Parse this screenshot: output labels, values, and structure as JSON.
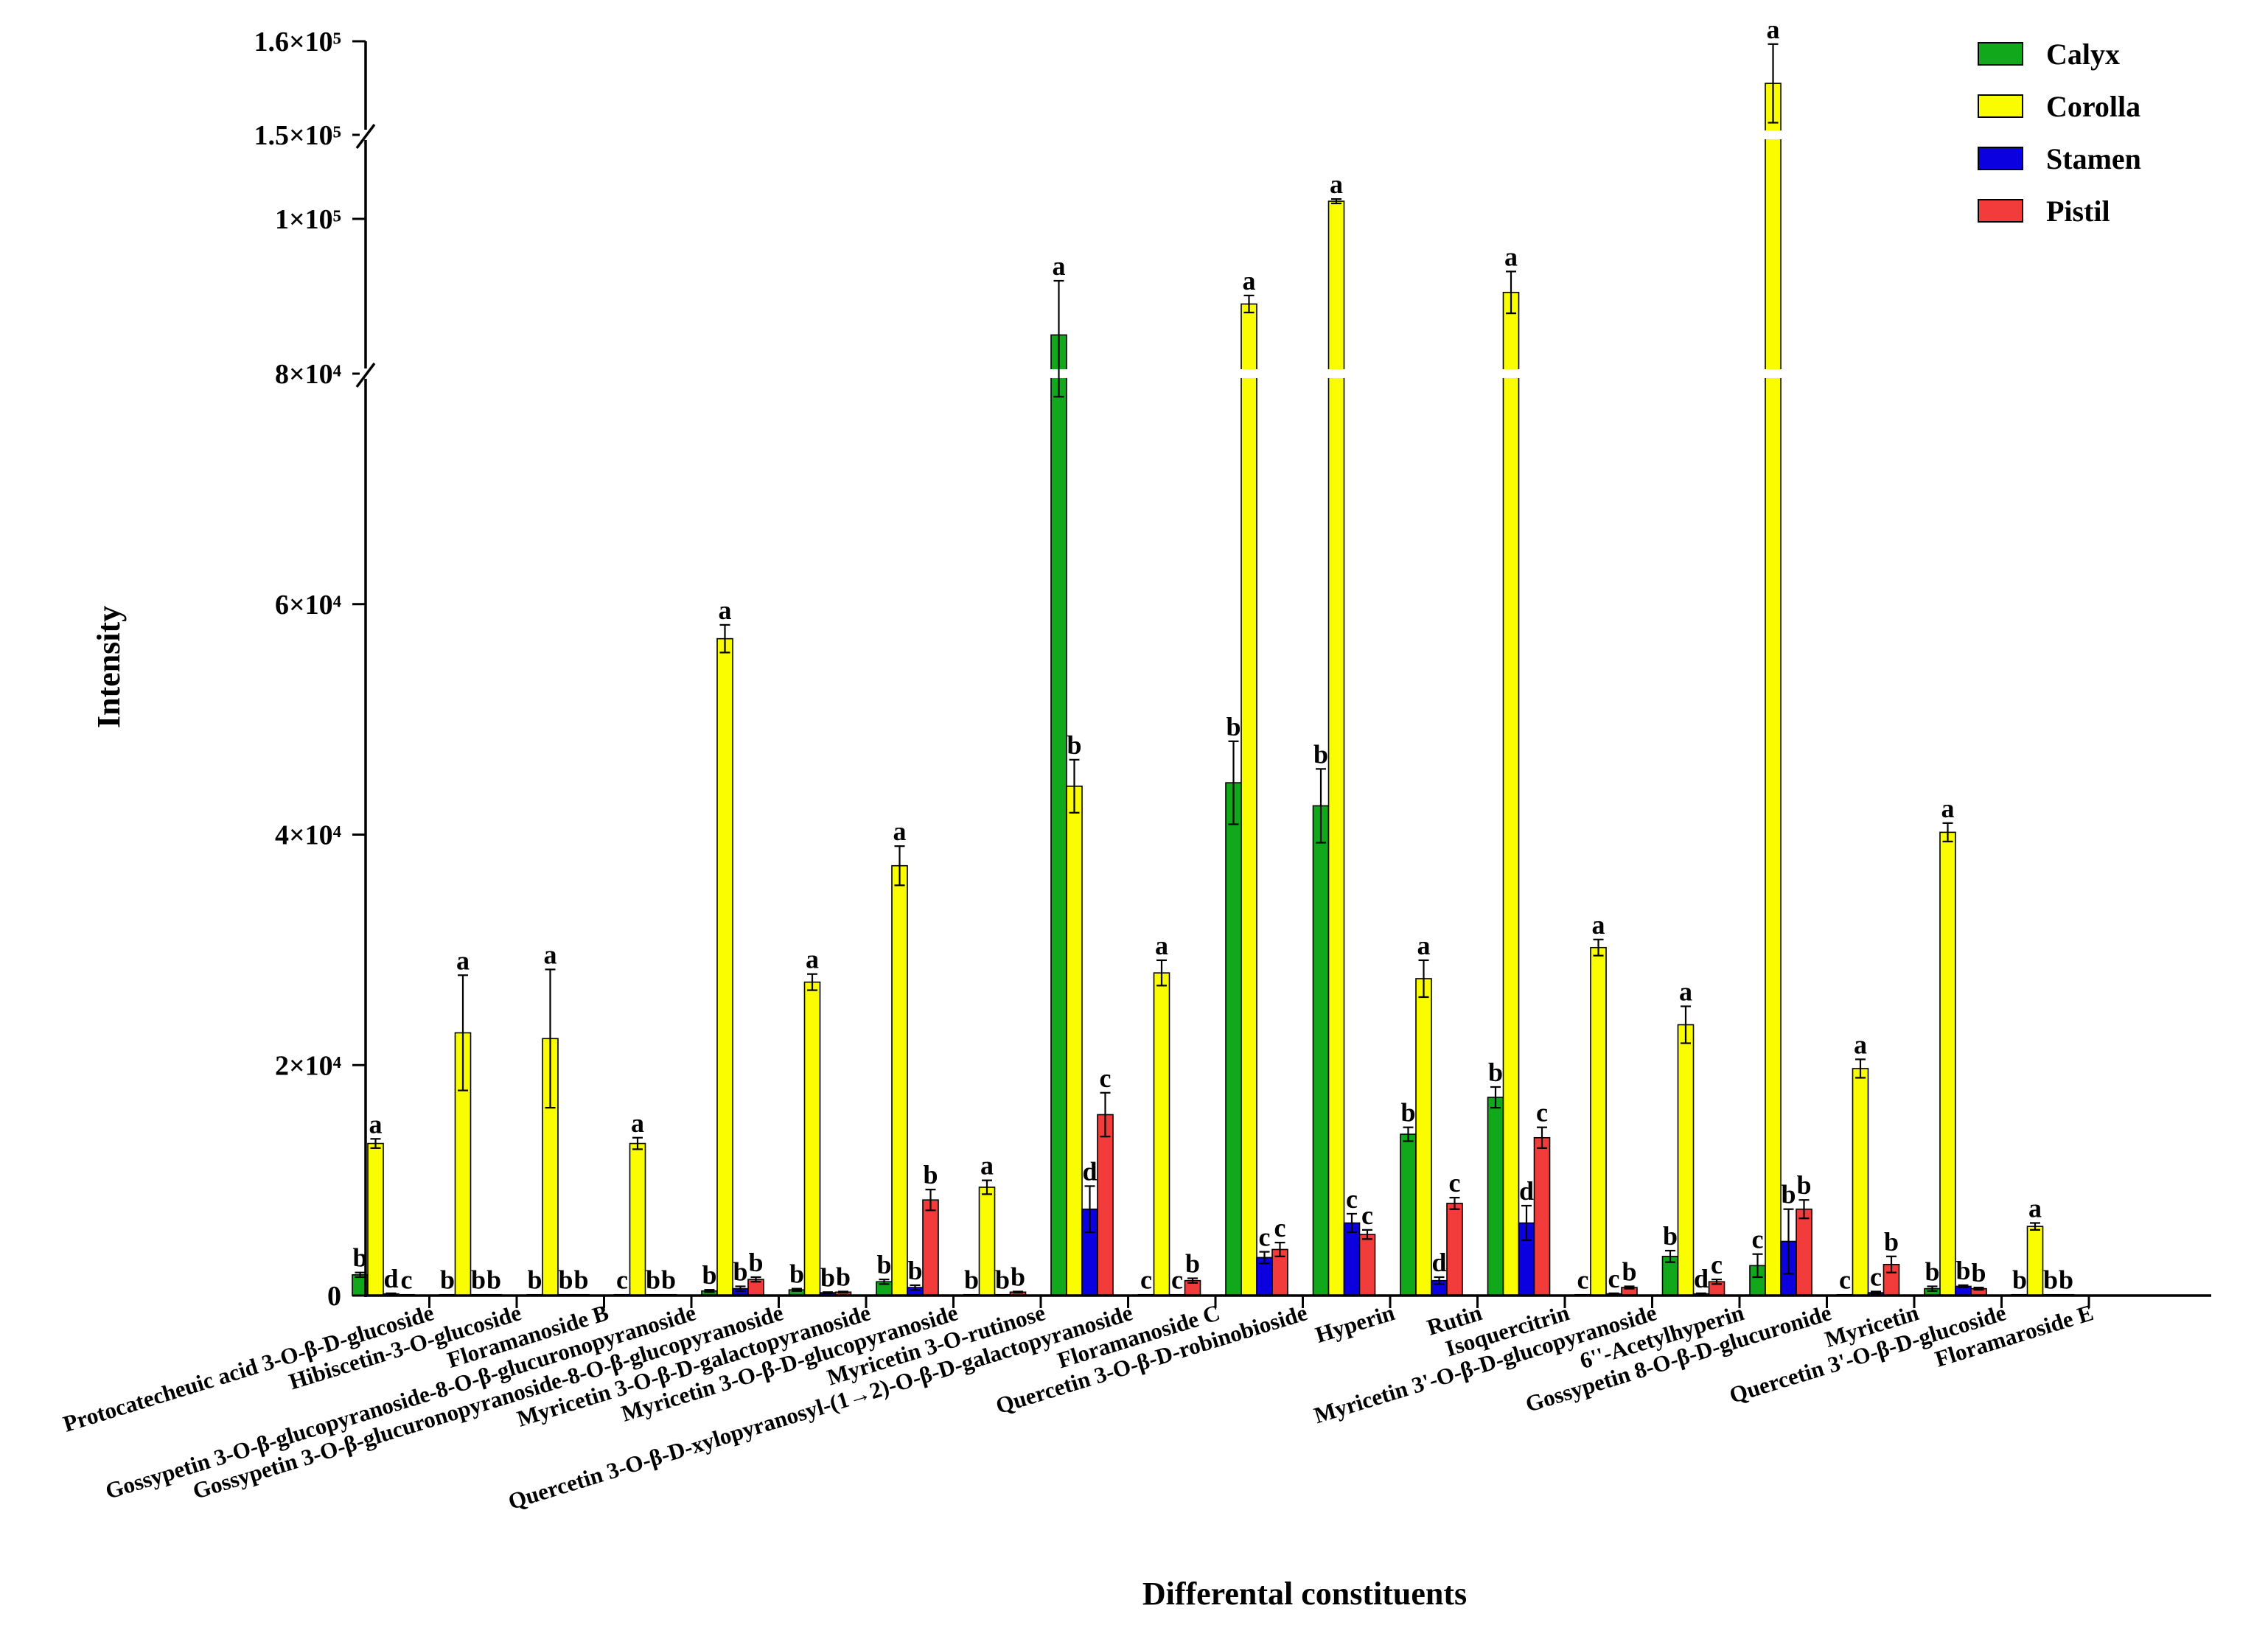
{
  "chart_data": {
    "type": "bar",
    "title": "",
    "xlabel": "Differental constituents",
    "ylabel": "Intensity",
    "ylim": [
      0,
      160000
    ],
    "axis_breaks": [
      [
        80000,
        100000
      ],
      [
        150000,
        160000
      ]
    ],
    "grid": false,
    "legend_position": "top-right",
    "y_ticks": [
      {
        "value": 0,
        "label": "0"
      },
      {
        "value": 20000,
        "label": "2×10⁴"
      },
      {
        "value": 40000,
        "label": "4×10⁴"
      },
      {
        "value": 60000,
        "label": "6×10⁴"
      },
      {
        "value": 80000,
        "label": "8×10⁴"
      },
      {
        "value": 100000,
        "label": "1×10⁵"
      },
      {
        "value": 150000,
        "label": "1.5×10⁵"
      },
      {
        "value": 160000,
        "label": "1.6×10⁵"
      }
    ],
    "categories": [
      "Protocatecheuic acid 3-O-β-D-glucoside",
      "Hibiscetin-3-O-glucoside",
      "Floramanoside B",
      "Gossypetin 3-O-β-glucopyranoside-8-O-β-glucuronopyranoside",
      "Gossypetin 3-O-β-glucuronopyranoside-8-O-β-glucopyranoside",
      "Myricetin 3-O-β-D-galactopyranoside",
      "Myricetin 3-O-β-D-glucopyranoside",
      "Myricetin 3-O-rutinose",
      "Quercetin 3-O-β-D-xylopyranosyl-(1→2)-O-β-D-galactopyranoside",
      "Floramanoside C",
      "Quercetin 3-O-β-D-robinobioside",
      "Hyperin",
      "Rutin",
      "Isoquercitrin",
      "Myricetin 3'-O-β-D-glucopyranoside",
      "6''-Acetylhyperin",
      "Gossypetin 8-O-β-D-glucuronide",
      "Myricetin",
      "Quercetin 3'-O-β-D-glucoside",
      "Floramaroside E"
    ],
    "series": [
      {
        "name": "Calyx",
        "color": "#12a81b",
        "values": [
          1800,
          80,
          80,
          80,
          400,
          500,
          1200,
          80,
          85000,
          80,
          44500,
          42500,
          14000,
          17200,
          80,
          3400,
          2600,
          80,
          600,
          80
        ],
        "errors": [
          200,
          0,
          0,
          0,
          100,
          100,
          200,
          0,
          7000,
          0,
          3600,
          3200,
          600,
          900,
          0,
          500,
          1000,
          0,
          200,
          0
        ],
        "letters": [
          "b",
          "b",
          "b",
          "c",
          "b",
          "b",
          "b",
          "b",
          "a",
          "c",
          "b",
          "b",
          "b",
          "b",
          "c",
          "b",
          "c",
          "c",
          "b",
          "b"
        ]
      },
      {
        "name": "Corolla",
        "color": "#fafc00",
        "values": [
          13200,
          22800,
          22300,
          13200,
          57000,
          27200,
          37300,
          9400,
          44200,
          28000,
          89000,
          110500,
          27500,
          90500,
          30200,
          23500,
          155500,
          19700,
          40200,
          6000
        ],
        "errors": [
          400,
          5000,
          6000,
          500,
          1200,
          700,
          1700,
          600,
          2300,
          1100,
          1100,
          1300,
          1600,
          2700,
          700,
          1600,
          4200,
          800,
          800,
          300
        ],
        "letters": [
          "a",
          "a",
          "a",
          "a",
          "a",
          "a",
          "a",
          "a",
          "b",
          "a",
          "a",
          "a",
          "a",
          "a",
          "a",
          "a",
          "a",
          "a",
          "a",
          "a"
        ]
      },
      {
        "name": "Stamen",
        "color": "#0a00e0",
        "values": [
          150,
          80,
          80,
          80,
          600,
          250,
          700,
          80,
          7500,
          80,
          3300,
          6300,
          1300,
          6300,
          150,
          150,
          4700,
          250,
          800,
          80
        ],
        "errors": [
          50,
          0,
          0,
          0,
          200,
          50,
          200,
          0,
          2000,
          0,
          500,
          800,
          300,
          1500,
          50,
          50,
          2800,
          100,
          100,
          0
        ],
        "letters": [
          "d",
          "b",
          "b",
          "b",
          "b",
          "b",
          "b",
          "b",
          "d",
          "c",
          "c",
          "c",
          "d",
          "d",
          "c",
          "d",
          "b",
          "c",
          "b",
          "b"
        ]
      },
      {
        "name": "Pistil",
        "color": "#f23c3c",
        "values": [
          80,
          80,
          80,
          80,
          1400,
          300,
          8300,
          300,
          15700,
          1300,
          4000,
          5300,
          8000,
          13700,
          700,
          1200,
          7500,
          2700,
          600,
          80
        ],
        "errors": [
          0,
          0,
          0,
          0,
          200,
          50,
          900,
          50,
          1900,
          200,
          600,
          400,
          500,
          900,
          100,
          200,
          800,
          700,
          100,
          0
        ],
        "letters": [
          "c",
          "b",
          "b",
          "b",
          "b",
          "b",
          "b",
          "b",
          "c",
          "b",
          "c",
          "c",
          "c",
          "c",
          "b",
          "c",
          "b",
          "b",
          "b",
          "b"
        ]
      }
    ]
  }
}
